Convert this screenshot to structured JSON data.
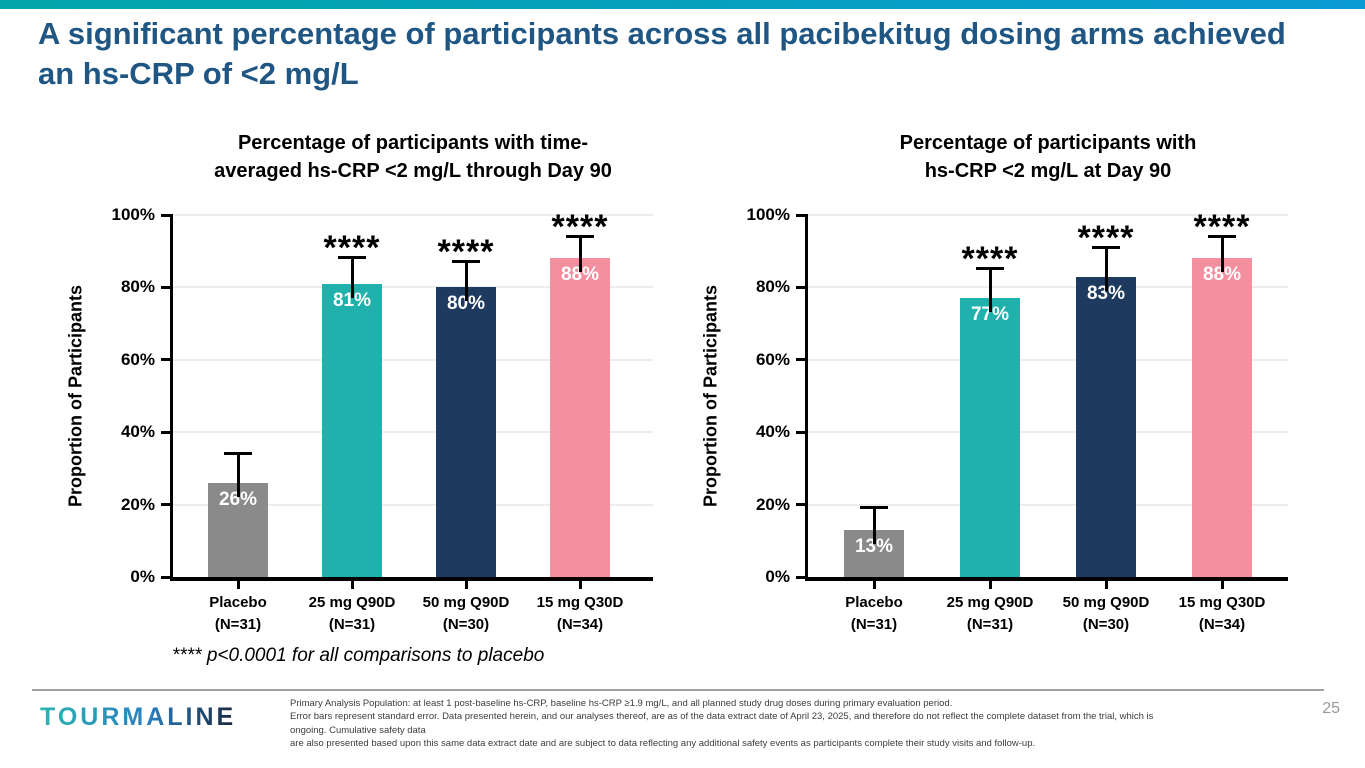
{
  "slide": {
    "title": "A significant percentage of participants across all pacibekitug dosing arms achieved an hs-CRP of <2 mg/L"
  },
  "accent_colors": {
    "top_bar_gradient_left": "#00a6a9",
    "top_bar_gradient_right": "#0b9bd3",
    "title_blue": "#1f5683"
  },
  "chart_data": [
    {
      "type": "bar",
      "title": "Percentage of participants with time-averaged hs-CRP <2 mg/L through Day 90",
      "title_lines": [
        "Percentage of participants with time-",
        "averaged hs-CRP <2 mg/L through Day 90"
      ],
      "ylabel": "Proportion of Participants",
      "xlabel": "",
      "ylim": [
        0,
        100
      ],
      "yticks": [
        "0%",
        "20%",
        "40%",
        "60%",
        "80%",
        "100%"
      ],
      "grid": true,
      "legend": "none",
      "categories": [
        [
          "Placebo",
          "(N=31)"
        ],
        [
          "25 mg Q90D",
          "(N=31)"
        ],
        [
          "50 mg Q90D",
          "(N=30)"
        ],
        [
          "15 mg Q30D",
          "(N=34)"
        ]
      ],
      "values": [
        26,
        81,
        80,
        88
      ],
      "bar_labels": [
        "26%",
        "81%",
        "80%",
        "88%"
      ],
      "error_upper": [
        8,
        7,
        7,
        6
      ],
      "significance": [
        "",
        "****",
        "****",
        "****"
      ],
      "bar_colors": [
        "#8a8a8a",
        "#20b1ac",
        "#1e3a5f",
        "#f48f9f"
      ]
    },
    {
      "type": "bar",
      "title": "Percentage of participants with hs-CRP <2 mg/L at Day 90",
      "title_lines": [
        "Percentage of participants with",
        "hs-CRP <2 mg/L at Day 90"
      ],
      "ylabel": "Proportion of Participants",
      "xlabel": "",
      "ylim": [
        0,
        100
      ],
      "yticks": [
        "0%",
        "20%",
        "40%",
        "60%",
        "80%",
        "100%"
      ],
      "grid": true,
      "legend": "none",
      "categories": [
        [
          "Placebo",
          "(N=31)"
        ],
        [
          "25 mg Q90D",
          "(N=31)"
        ],
        [
          "50 mg Q90D",
          "(N=30)"
        ],
        [
          "15 mg Q30D",
          "(N=34)"
        ]
      ],
      "values": [
        13,
        77,
        83,
        88
      ],
      "bar_labels": [
        "13%",
        "77%",
        "83%",
        "88%"
      ],
      "error_upper": [
        6,
        8,
        8,
        6
      ],
      "significance": [
        "",
        "****",
        "****",
        "****"
      ],
      "bar_colors": [
        "#8a8a8a",
        "#20b1ac",
        "#1e3a5f",
        "#f48f9f"
      ]
    }
  ],
  "significance_note": {
    "marker": "****",
    "text": "p<0.0001 for all comparisons to placebo"
  },
  "footer": {
    "logo_text": "TOURMALINE",
    "page_number": "25",
    "disclaimer_lines": [
      "Primary Analysis Population: at least 1 post-baseline hs-CRP, baseline hs-CRP ≥1.9 mg/L, and all planned study drug doses during primary evaluation period.",
      "Error bars represent standard error. Data presented herein, and our analyses thereof, are as of the data extract date of April 23, 2025, and therefore do not reflect the complete dataset from the trial, which is ongoing. Cumulative safety data",
      "are also presented based upon this same data extract date and are subject to data reflecting any additional safety events as participants complete their study visits and follow-up."
    ]
  }
}
